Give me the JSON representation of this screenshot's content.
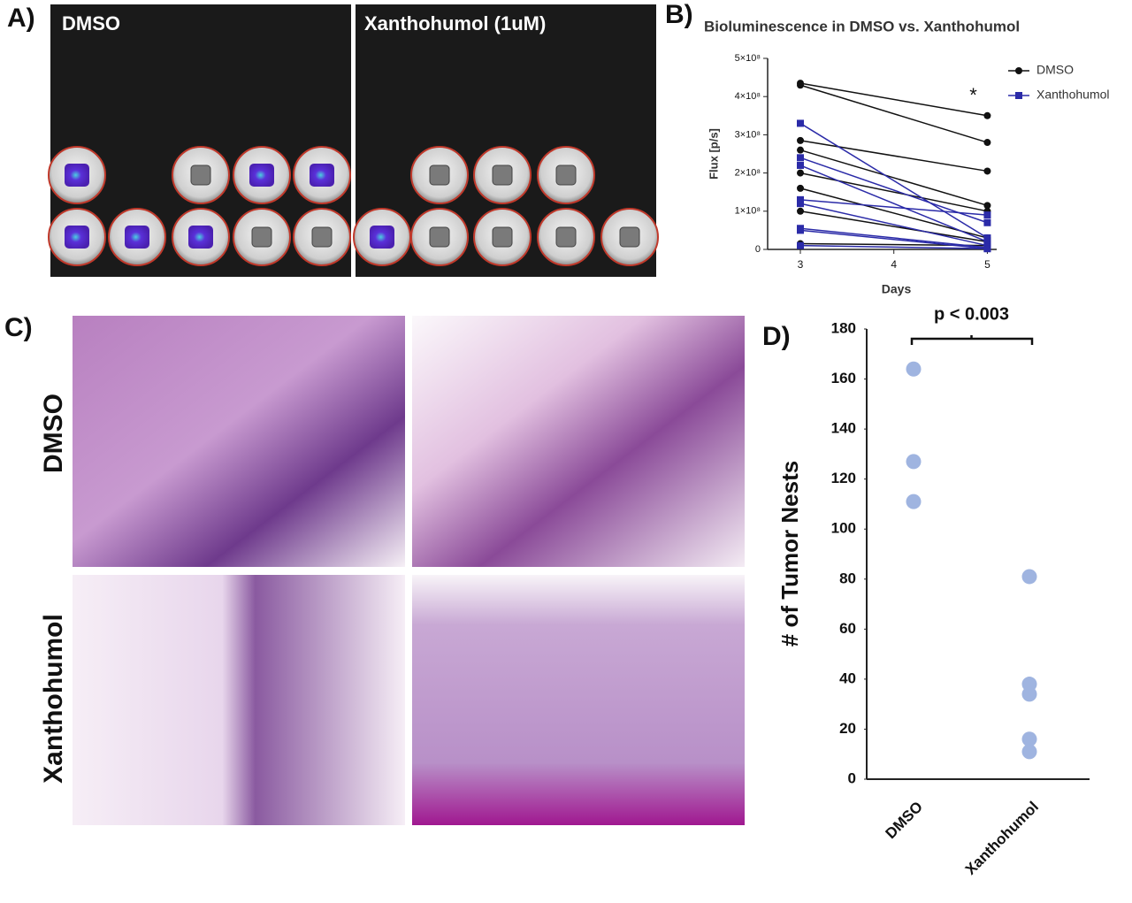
{
  "panels": {
    "a": {
      "label": "A)",
      "left_title": "DMSO",
      "right_title": "Xanthohumol (1uM)"
    },
    "b": {
      "label": "B)"
    },
    "c": {
      "label": "C)",
      "top_row": "DMSO",
      "bottom_row": "Xanthohumol"
    },
    "d": {
      "label": "D)"
    }
  },
  "chart_data": [
    {
      "type": "paired-line",
      "title": "Bioluminescence in DMSO vs. Xanthohumol",
      "xlabel": "Days",
      "ylabel": "Flux [p/s]",
      "x": [
        3,
        5
      ],
      "xlim": [
        2.65,
        5.1
      ],
      "xticks": [
        3,
        4,
        5
      ],
      "ylim": [
        0,
        500000000
      ],
      "yticks": [
        0,
        {
          "value": 100000000,
          "label": "1×10⁸"
        },
        {
          "value": 200000000,
          "label": "2×10⁸"
        },
        {
          "value": 300000000,
          "label": "3×10⁸"
        },
        {
          "value": 400000000,
          "label": "4×10⁸"
        },
        {
          "value": 500000000,
          "label": "5×10⁸"
        }
      ],
      "legend": "upper right",
      "annotation": {
        "text": "*",
        "x": 4.85,
        "y": 400000000
      },
      "groups": [
        {
          "name": "DMSO",
          "color": "#111111",
          "marker": "circle",
          "samples": [
            [
              435000000,
              350000000
            ],
            [
              430000000,
              280000000
            ],
            [
              285000000,
              205000000
            ],
            [
              260000000,
              115000000
            ],
            [
              200000000,
              100000000
            ],
            [
              160000000,
              30000000
            ],
            [
              100000000,
              20000000
            ],
            [
              15000000,
              10000000
            ]
          ]
        },
        {
          "name": "Xanthohumol",
          "color": "#2b2ba8",
          "marker": "square",
          "samples": [
            [
              330000000,
              30000000
            ],
            [
              240000000,
              70000000
            ],
            [
              220000000,
              20000000
            ],
            [
              130000000,
              90000000
            ],
            [
              120000000,
              10000000
            ],
            [
              55000000,
              5000000
            ],
            [
              50000000,
              2000000
            ],
            [
              10000000,
              2000000
            ]
          ]
        }
      ]
    },
    {
      "type": "strip",
      "ylabel": "# of Tumor Nests",
      "categories": [
        "DMSO",
        "Xanthohumol"
      ],
      "values": [
        [
          164,
          127,
          111
        ],
        [
          81,
          38,
          34,
          16,
          11
        ]
      ],
      "color": "#9fb4e0",
      "ylim": [
        0,
        180
      ],
      "yticks": [
        0,
        20,
        40,
        60,
        80,
        100,
        120,
        140,
        160,
        180
      ],
      "annotation": "p < 0.003"
    }
  ]
}
